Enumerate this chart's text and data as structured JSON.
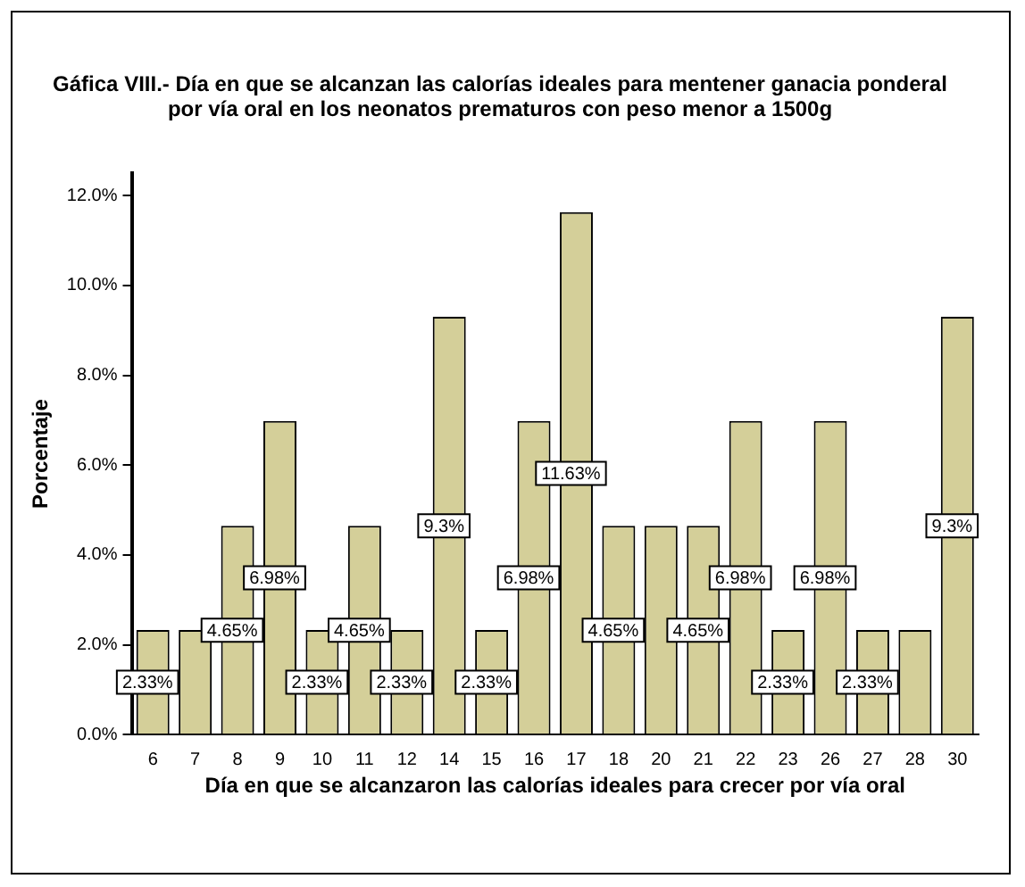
{
  "chart_data": {
    "type": "bar",
    "title": "Gáfica VIII.- Día  en que se alcanzan las calorías ideales para mentener ganacia ponderal por vía oral en los neonatos prematuros  con peso menor a 1500g",
    "xlabel": "Día en que se alcanzaron las calorías ideales para crecer por vía oral",
    "ylabel": "Porcentaje",
    "categories": [
      "6",
      "7",
      "8",
      "9",
      "10",
      "11",
      "12",
      "14",
      "15",
      "16",
      "17",
      "18",
      "20",
      "21",
      "22",
      "23",
      "26",
      "27",
      "28",
      "30"
    ],
    "values": [
      2.33,
      2.33,
      4.65,
      6.98,
      2.33,
      4.65,
      2.33,
      9.3,
      2.33,
      6.98,
      11.63,
      4.65,
      4.65,
      4.65,
      6.98,
      2.33,
      6.98,
      2.33,
      2.33,
      9.3
    ],
    "value_labels": [
      "2.33%",
      null,
      "4.65%",
      "6.98%",
      "2.33%",
      "4.65%",
      "2.33%",
      "9.3%",
      "2.33%",
      "6.98%",
      "11.63%",
      "4.65%",
      null,
      "4.65%",
      "6.98%",
      "2.33%",
      "6.98%",
      "2.33%",
      null,
      "9.3%"
    ],
    "color": "#d4cf99",
    "ylim": [
      0,
      12.5
    ],
    "yticks": [
      {
        "value": 0,
        "label": "0.0%"
      },
      {
        "value": 2,
        "label": "2.0%"
      },
      {
        "value": 4,
        "label": "4.0%"
      },
      {
        "value": 6,
        "label": "6.0%"
      },
      {
        "value": 8,
        "label": "8.0%"
      },
      {
        "value": 10,
        "label": "10.0%"
      },
      {
        "value": 12,
        "label": "12.0%"
      }
    ],
    "grid": false,
    "legend": false
  }
}
